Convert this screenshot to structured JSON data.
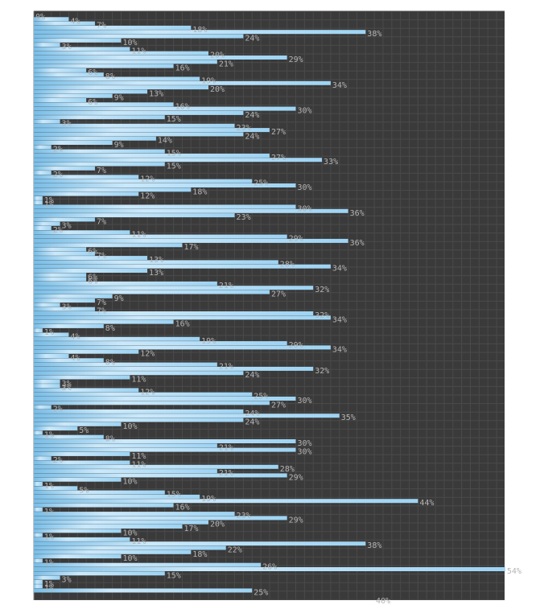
{
  "chart_data": {
    "type": "bar",
    "orientation": "horizontal",
    "value_suffix": "%",
    "xlim": [
      0,
      55
    ],
    "x_tick_labels": [
      "40%"
    ],
    "grid": true,
    "values": [
      0,
      4,
      7,
      18,
      38,
      24,
      10,
      3,
      11,
      20,
      29,
      21,
      16,
      6,
      8,
      19,
      34,
      20,
      13,
      9,
      6,
      16,
      30,
      24,
      15,
      3,
      23,
      27,
      24,
      14,
      9,
      2,
      15,
      27,
      33,
      15,
      7,
      2,
      12,
      25,
      30,
      18,
      12,
      1,
      1,
      30,
      36,
      23,
      7,
      3,
      2,
      11,
      29,
      36,
      17,
      6,
      7,
      13,
      28,
      34,
      13,
      6,
      6,
      21,
      32,
      27,
      9,
      7,
      3,
      7,
      32,
      34,
      16,
      8,
      1,
      4,
      19,
      29,
      34,
      12,
      4,
      8,
      21,
      32,
      24,
      11,
      3,
      3,
      12,
      25,
      30,
      27,
      2,
      24,
      35,
      24,
      10,
      5,
      1,
      8,
      30,
      21,
      30,
      11,
      2,
      11,
      28,
      21,
      29,
      10,
      1,
      5,
      15,
      19,
      44,
      16,
      1,
      23,
      29,
      20,
      17,
      10,
      1,
      11,
      38,
      22,
      18,
      10,
      1,
      26,
      54,
      15,
      3,
      1,
      1,
      25
    ]
  },
  "colors": {
    "plot_bg": "#3a3a3a",
    "grid": "#4a4a4a",
    "bar_light": "#cbe9fb",
    "bar_mid": "#9dd3f3",
    "bar_dark": "#79bde6",
    "value_label": "#b4b4b4",
    "axis": "#555555"
  }
}
